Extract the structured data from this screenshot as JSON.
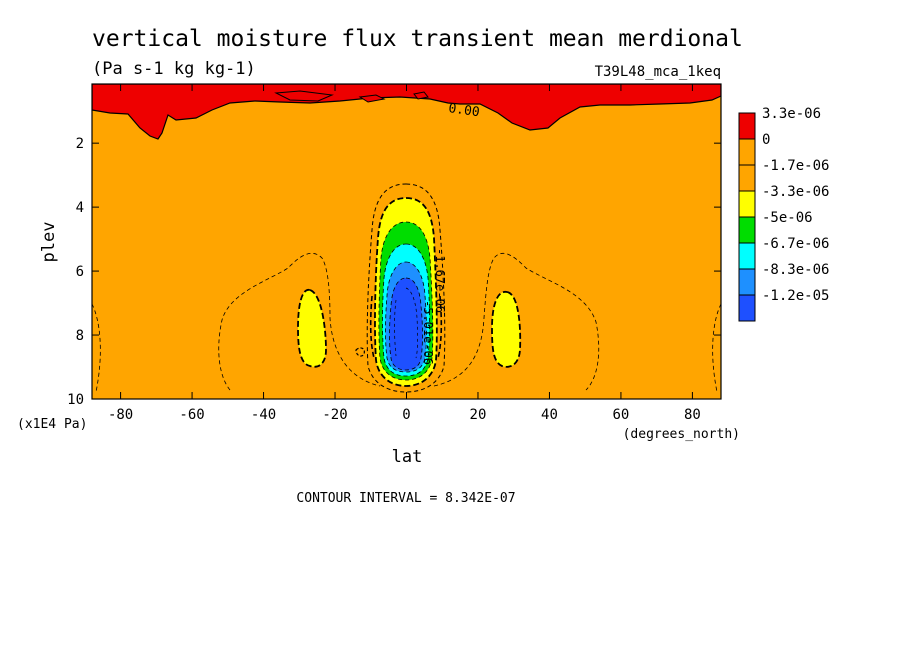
{
  "chart_data": {
    "type": "heatmap",
    "title": "vertical moisture flux transient mean merdional",
    "subtitle": "(Pa s-1 kg kg-1)",
    "run_label": "T39L48_mca_1keq",
    "xlabel": "lat",
    "xunits": "(degrees_north)",
    "ylabel": "plev",
    "yunits": "(x1E4 Pa)",
    "xlim": [
      -88,
      88
    ],
    "ylim": [
      10,
      0.15
    ],
    "x_ticks": [
      -80,
      -60,
      -40,
      -20,
      0,
      20,
      40,
      60,
      80
    ],
    "x_tick_labels": [
      "-80",
      "-60",
      "-40",
      "-20",
      "0",
      "20",
      "40",
      "60",
      "80"
    ],
    "y_ticks": [
      2,
      4,
      6,
      8,
      10
    ],
    "y_tick_labels": [
      "2",
      "4",
      "6",
      "8",
      "10"
    ],
    "contour_interval_text": "CONTOUR INTERVAL = 8.342E-07",
    "contour_labels": [
      "0.00",
      "-1.67e-06",
      "-5.01e-06"
    ],
    "legend": {
      "placement": "right",
      "levels": [
        "3.3e-06",
        "0",
        "-1.7e-06",
        "-3.3e-06",
        "-5e-06",
        "-6.7e-06",
        "-8.3e-06",
        "-1.2e-05"
      ],
      "colors": [
        "#ee0000",
        "#ffa500",
        "#ffa500",
        "#ffff00",
        "#00dd00",
        "#00ffff",
        "#1e90ff",
        "#1e50ff"
      ]
    },
    "background_color": "#ffa500",
    "regions": [
      {
        "name": "upper-positive-flux",
        "level": "3.3e-06",
        "color": "#ee0000",
        "lat_range": [
          -88,
          88
        ],
        "plev_range": [
          0.15,
          1.8
        ]
      },
      {
        "name": "equatorial-minimum",
        "level": "-1.2e-05",
        "center": [
          0,
          7.3
        ],
        "min_value": "-1.2e-05"
      },
      {
        "name": "subtropical-minimum-south",
        "level": "-3.3e-06",
        "center": [
          -27,
          7.9
        ]
      },
      {
        "name": "subtropical-minimum-north",
        "level": "-3.3e-06",
        "center": [
          29,
          7.9
        ]
      }
    ]
  }
}
